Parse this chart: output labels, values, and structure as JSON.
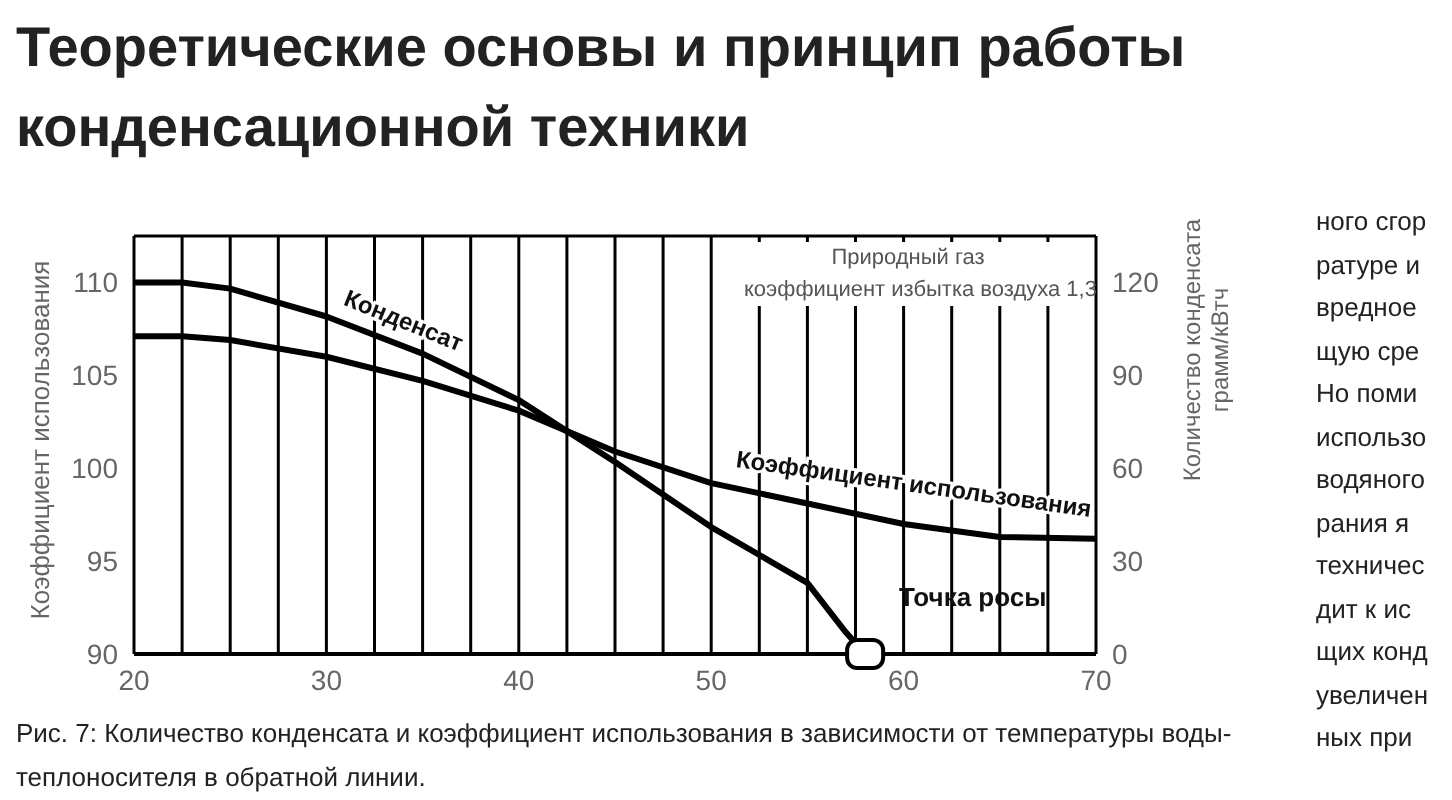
{
  "chart_data": {
    "type": "line",
    "title": "Теоретические основы и принцип работы конденсационной техники",
    "ylabel": "Коэффициент использования",
    "y2label": "Количество конденсата грамм/кВтч",
    "series": [
      {
        "name": "Конденсат",
        "color": "#000000",
        "axis": "y2",
        "x": [
          20,
          22.5,
          25,
          30,
          35,
          40,
          45,
          50,
          55,
          57,
          58
        ],
        "values": [
          120,
          120,
          118,
          109,
          97,
          82,
          62,
          41,
          23,
          7,
          0
        ]
      },
      {
        "name": "Коэффициент использования",
        "color": "#000000",
        "x": [
          20,
          22.5,
          25,
          30,
          35,
          40,
          45,
          50,
          55,
          60,
          65,
          70
        ],
        "values": [
          107.1,
          107.1,
          106.9,
          106.0,
          104.7,
          103.1,
          100.9,
          99.2,
          98.1,
          97.0,
          96.3,
          96.2
        ]
      }
    ],
    "xlim": [
      20,
      70
    ],
    "xticks": [
      20,
      {
        "value": 22.5,
        "label": null
      },
      {
        "value": 25,
        "label": null
      },
      {
        "value": 27.5,
        "label": null
      },
      30,
      {
        "value": 32.5,
        "label": null
      },
      {
        "value": 35,
        "label": null
      },
      {
        "value": 37.5,
        "label": null
      },
      40,
      {
        "value": 42.5,
        "label": null
      },
      {
        "value": 45,
        "label": null
      },
      {
        "value": 47.5,
        "label": null
      },
      50,
      {
        "value": 52.5,
        "label": null
      },
      {
        "value": 55,
        "label": null
      },
      {
        "value": 57.5,
        "label": null
      },
      60,
      {
        "value": 62.5,
        "label": null
      },
      {
        "value": 65,
        "label": null
      },
      {
        "value": 67.5,
        "label": null
      },
      70
    ],
    "ylim": [
      90,
      112.5
    ],
    "yticks": [
      90,
      95,
      100,
      105,
      110
    ],
    "y2lim": [
      0,
      135
    ],
    "y2ticks": [
      0,
      30,
      60,
      90,
      120
    ],
    "grid": true,
    "legend": false,
    "marker": "none",
    "line_style": "solid",
    "annotations": [
      "Природный газ",
      "коэффициент избытка воздуха 1,3",
      "Точка росы",
      "Рис. 7: Количество конденсата и коэффициент использования в зависимости от температуры воды-теплоносителя в обратной линии.",
      "ного сгор\nратуре и\nвредное\nщую сре\nНо поми\nиспользо\nводяного\nрания я\nтехничес\nдит к ис\nщих конд\nувеличен\nных при"
    ]
  }
}
